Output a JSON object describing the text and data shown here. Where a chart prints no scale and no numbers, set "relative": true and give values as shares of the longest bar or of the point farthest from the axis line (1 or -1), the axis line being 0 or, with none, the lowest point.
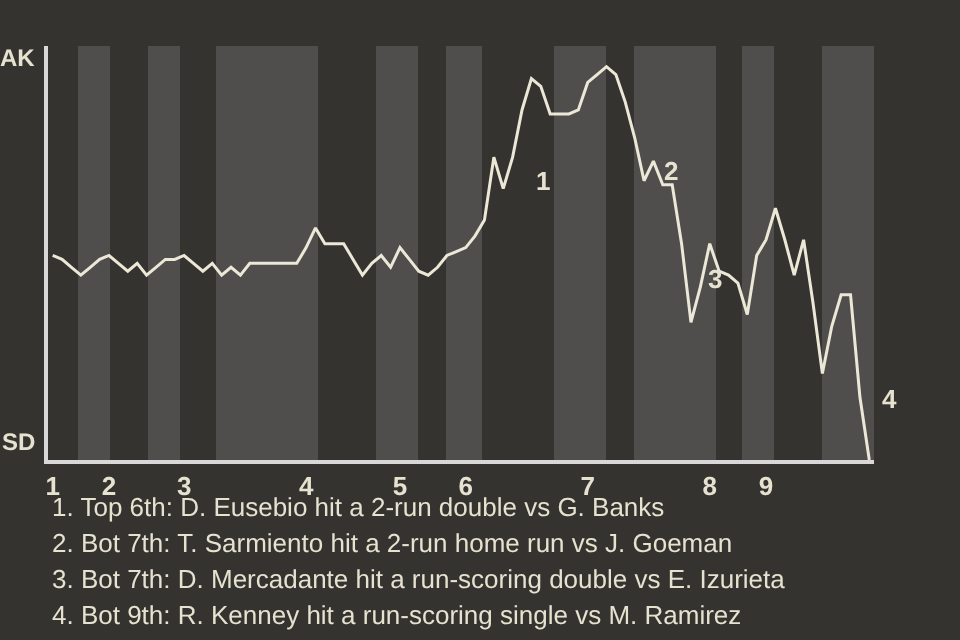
{
  "chart_data": {
    "type": "line",
    "categories": [
      "1",
      null,
      null,
      null,
      null,
      null,
      "2",
      null,
      null,
      null,
      null,
      null,
      null,
      null,
      "3",
      null,
      null,
      null,
      null,
      null,
      null,
      null,
      null,
      null,
      null,
      null,
      null,
      "4",
      null,
      null,
      null,
      null,
      null,
      null,
      null,
      null,
      null,
      "5",
      null,
      null,
      null,
      null,
      null,
      null,
      "6",
      null,
      null,
      null,
      null,
      null,
      null,
      null,
      null,
      null,
      null,
      null,
      null,
      "7",
      null,
      null,
      null,
      null,
      null,
      null,
      null,
      null,
      null,
      null,
      null,
      null,
      "8",
      null,
      null,
      null,
      null,
      null,
      "9",
      null,
      null,
      null,
      null,
      null,
      null,
      null,
      null,
      null,
      null,
      null
    ],
    "relative": true,
    "series": [
      {
        "color": "#ece8d8",
        "values": [
          0.52,
          0.51,
          0.49,
          0.47,
          0.49,
          0.51,
          0.52,
          0.5,
          0.48,
          0.5,
          0.47,
          0.49,
          0.51,
          0.51,
          0.52,
          0.5,
          0.48,
          0.5,
          0.47,
          0.49,
          0.47,
          0.5,
          0.5,
          0.5,
          0.5,
          0.5,
          0.5,
          0.54,
          0.59,
          0.55,
          0.55,
          0.55,
          0.51,
          0.47,
          0.5,
          0.52,
          0.49,
          0.54,
          0.51,
          0.48,
          0.47,
          0.49,
          0.52,
          0.53,
          0.54,
          0.57,
          0.61,
          0.77,
          0.69,
          0.77,
          0.89,
          0.97,
          0.95,
          0.88,
          0.88,
          0.88,
          0.89,
          0.96,
          0.98,
          1,
          0.98,
          0.91,
          0.82,
          0.71,
          0.76,
          0.7,
          0.7,
          0.55,
          0.35,
          0.44,
          0.55,
          0.48,
          0.47,
          0.45,
          0.37,
          0.52,
          0.56,
          0.64,
          0.56,
          0.47,
          0.56,
          0.4,
          0.22,
          0.34,
          0.42,
          0.42,
          0.16,
          0
        ]
      }
    ],
    "marker": "none",
    "line_style": "solid",
    "annotations": [
      "1",
      "2",
      "3",
      "4",
      "AK",
      "SD",
      "1. Top 6th: D. Eusebio hit a 2-run double vs G. Banks",
      "2. Bot 7th: T. Sarmiento hit a 2-run home run vs J. Goeman",
      "3. Bot 7th: D. Mercadante hit a run-scoring double vs E. Izurieta",
      "4. Bot 9th: R. Kenney hit a run-scoring single vs M. Ramirez"
    ]
  }
}
